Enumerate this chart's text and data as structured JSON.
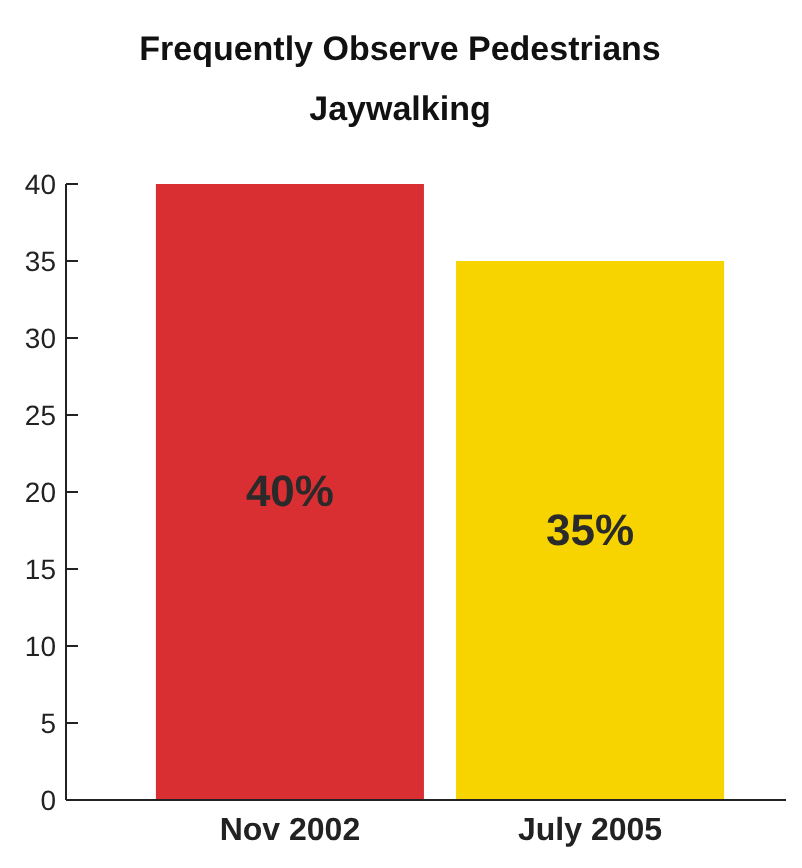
{
  "chart_data": {
    "type": "bar",
    "title": "Frequently Observe Pedestrians Jaywalking",
    "categories": [
      "Nov 2002",
      "July 2005"
    ],
    "values": [
      40,
      35
    ],
    "colors": [
      "#d92e32",
      "#f7d300"
    ],
    "value_labels": [
      "40%",
      "35%"
    ],
    "ylim": [
      0,
      40
    ],
    "yticks": [
      0,
      5,
      10,
      15,
      20,
      25,
      30,
      35,
      40
    ],
    "grid": false
  }
}
